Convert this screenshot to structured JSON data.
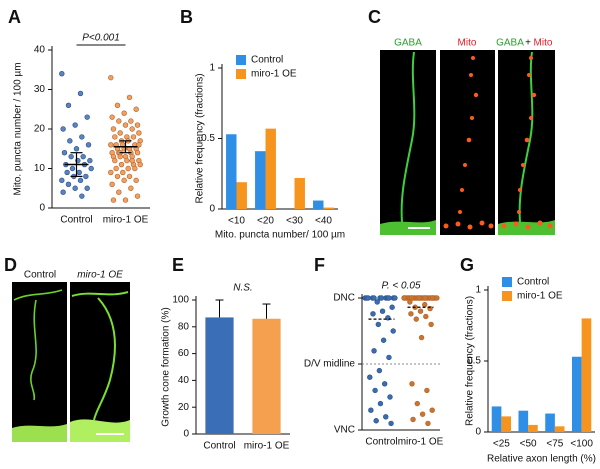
{
  "chart_data": [
    {
      "panel": "A",
      "type": "strip",
      "ylabel": "Mito. puncta number / 100 µm",
      "categories": [
        "Control",
        "miro-1 OE"
      ],
      "series": [
        {
          "color": "#5a84c0",
          "values": [
            34,
            29,
            26,
            23,
            21,
            20,
            18,
            17,
            16,
            15,
            14,
            13,
            13,
            12,
            12,
            11,
            11,
            10,
            10,
            9,
            9,
            8,
            8,
            7,
            7,
            6,
            5,
            5,
            4,
            3
          ]
        },
        {
          "color": "#f0a060",
          "values": [
            33,
            28,
            26,
            25,
            24,
            23,
            22,
            22,
            21,
            21,
            20,
            20,
            19,
            19,
            18,
            18,
            18,
            17,
            17,
            17,
            16,
            16,
            16,
            16,
            15,
            15,
            15,
            15,
            14,
            14,
            14,
            14,
            13,
            13,
            13,
            13,
            12,
            12,
            12,
            11,
            11,
            11,
            10,
            10,
            10,
            9,
            9,
            8,
            8,
            7,
            7,
            6,
            5,
            4,
            3,
            2,
            2,
            12,
            14,
            16
          ]
        }
      ],
      "means": [
        11,
        15.5
      ],
      "errors": [
        3,
        1.5
      ],
      "annotation": "P<0.001",
      "bracket": true,
      "ylim": [
        0,
        40
      ],
      "yticks": [
        0,
        10,
        20,
        30,
        40
      ]
    },
    {
      "panel": "B",
      "type": "bar",
      "ylabel": "Relative frequency (fractions)",
      "xlabel": "Mito. puncta number/ 100 µm",
      "categories": [
        "<10",
        "<20",
        "<30",
        "<40"
      ],
      "series": [
        {
          "name": "Control",
          "color": "#2f8ee6",
          "values": [
            0.53,
            0.41,
            0,
            0.06
          ]
        },
        {
          "name": "miro-1 OE",
          "color": "#f7941d",
          "values": [
            0.19,
            0.57,
            0.22,
            0.01
          ]
        }
      ],
      "legend": "upper left",
      "ylim": [
        0,
        1
      ],
      "yticks": [
        0,
        0.5,
        1
      ]
    },
    {
      "panel": "E",
      "type": "bar",
      "ylabel": "Growth cone formation (%)",
      "categories": [
        "Control",
        "miro-1 OE"
      ],
      "values": [
        87,
        86
      ],
      "errors": [
        13,
        11
      ],
      "colors": [
        "#3a6fb8",
        "#f4a04f"
      ],
      "annotation": "N.S.",
      "ylim": [
        0,
        100
      ],
      "yticks": [
        0,
        20,
        40,
        60,
        80,
        100
      ]
    },
    {
      "panel": "F",
      "type": "strip",
      "categories": [
        "Control",
        "miro-1 OE"
      ],
      "series": [
        {
          "color": "#3a6db0",
          "values": [
            1,
            1,
            1,
            1,
            1,
            1,
            1,
            1,
            1,
            1,
            1,
            1,
            0.97,
            0.93,
            0.9,
            0.88,
            0.85,
            0.8,
            0.75,
            0.68,
            0.6,
            0.55,
            0.45,
            0.4,
            0.35,
            0.3,
            0.25,
            0.2,
            0.15,
            0.1,
            0.07,
            0.05
          ]
        },
        {
          "color": "#c8762f",
          "values": [
            1,
            1,
            1,
            1,
            1,
            1,
            1,
            1,
            1,
            1,
            1,
            1,
            1,
            1,
            1,
            1,
            1,
            1,
            1,
            1,
            1,
            1,
            1,
            1,
            1,
            1,
            1,
            1,
            0.97,
            0.95,
            0.93,
            0.92,
            0.9,
            0.88,
            0.86,
            0.84,
            0.8,
            0.7,
            0.35,
            0.3,
            0.2,
            0.15,
            0.12,
            0.08,
            0.05
          ]
        }
      ],
      "medians": [
        0.84,
        0.93
      ],
      "annotation": "P. < 0.05",
      "grid": true,
      "ylim": [
        0,
        1
      ],
      "yticks": [
        {
          "value": 1,
          "label": "DNC"
        },
        {
          "value": 0.5,
          "label": "D/V midline"
        },
        {
          "value": 0,
          "label": "VNC"
        }
      ]
    },
    {
      "panel": "G",
      "type": "bar",
      "ylabel": "Relative frequency (fractions)",
      "xlabel": "Relative axon length (%)",
      "categories": [
        "<25",
        "<50",
        "<75",
        "<100"
      ],
      "series": [
        {
          "name": "Control",
          "color": "#2f8ee6",
          "values": [
            0.18,
            0.15,
            0.13,
            0.53
          ]
        },
        {
          "name": "miro-1 OE",
          "color": "#f7941d",
          "values": [
            0.11,
            0.05,
            0.04,
            0.8
          ]
        }
      ],
      "legend": "upper left",
      "ylim": [
        0,
        1
      ],
      "yticks": [
        0,
        0.5,
        1
      ]
    }
  ],
  "micrographs": [
    {
      "panel": "C",
      "labels": [
        "GABA",
        "Mito"
      ],
      "merge_label": [
        "GABA",
        "+",
        "Mito"
      ]
    },
    {
      "panel": "D",
      "labels": [
        "Control",
        "miro-1 OE"
      ]
    }
  ]
}
